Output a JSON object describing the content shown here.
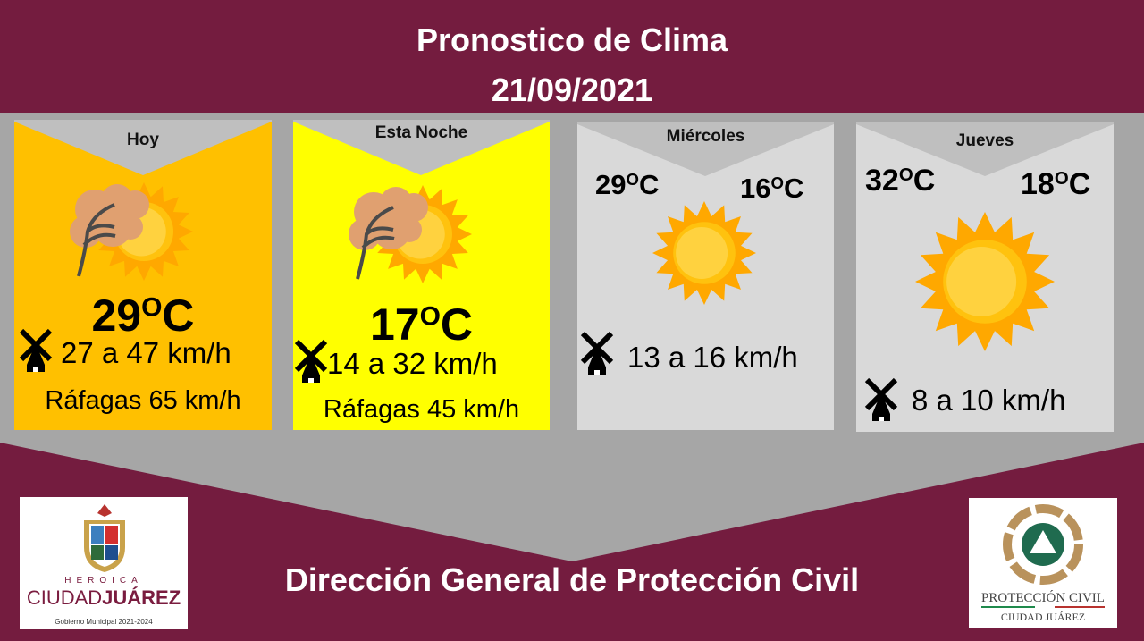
{
  "header": {
    "title": "Pronostico de Clima",
    "date": "21/09/2021"
  },
  "colors": {
    "background": "#741C3F",
    "band": "#A6A6A6",
    "hoy": "#FFC000",
    "noche": "#FFFF00",
    "day": "#D9D9D9"
  },
  "forecast": [
    {
      "label": "Hoy",
      "temp": "29",
      "unit": "C",
      "wind": "27 a 47 km/h",
      "gusts": "Ráfagas 65 km/h",
      "icon": "windy-sun-icon"
    },
    {
      "label": "Esta Noche",
      "temp": "17",
      "unit": "C",
      "wind": "14 a 32 km/h",
      "gusts": "Ráfagas 45 km/h",
      "icon": "windy-sun-icon"
    },
    {
      "label": "Miércoles",
      "high": "29",
      "low": "16",
      "unit": "C",
      "wind": "13 a 16 km/h",
      "icon": "sun-icon"
    },
    {
      "label": "Jueves",
      "high": "32",
      "low": "18",
      "unit": "C",
      "wind": "8 a 10 km/h",
      "icon": "sun-icon"
    }
  ],
  "deg": "O",
  "footer": {
    "title": "Dirección General de Protección Civil"
  },
  "logos": {
    "left": {
      "line1": "HEROICA",
      "line2a": "CIUDAD",
      "line2b": "JUÁREZ",
      "line3": "Gobierno Municipal 2021-2024"
    },
    "right": {
      "line1": "PROTECCIÓN CIVIL",
      "line2": "CIUDAD JUÁREZ"
    }
  }
}
